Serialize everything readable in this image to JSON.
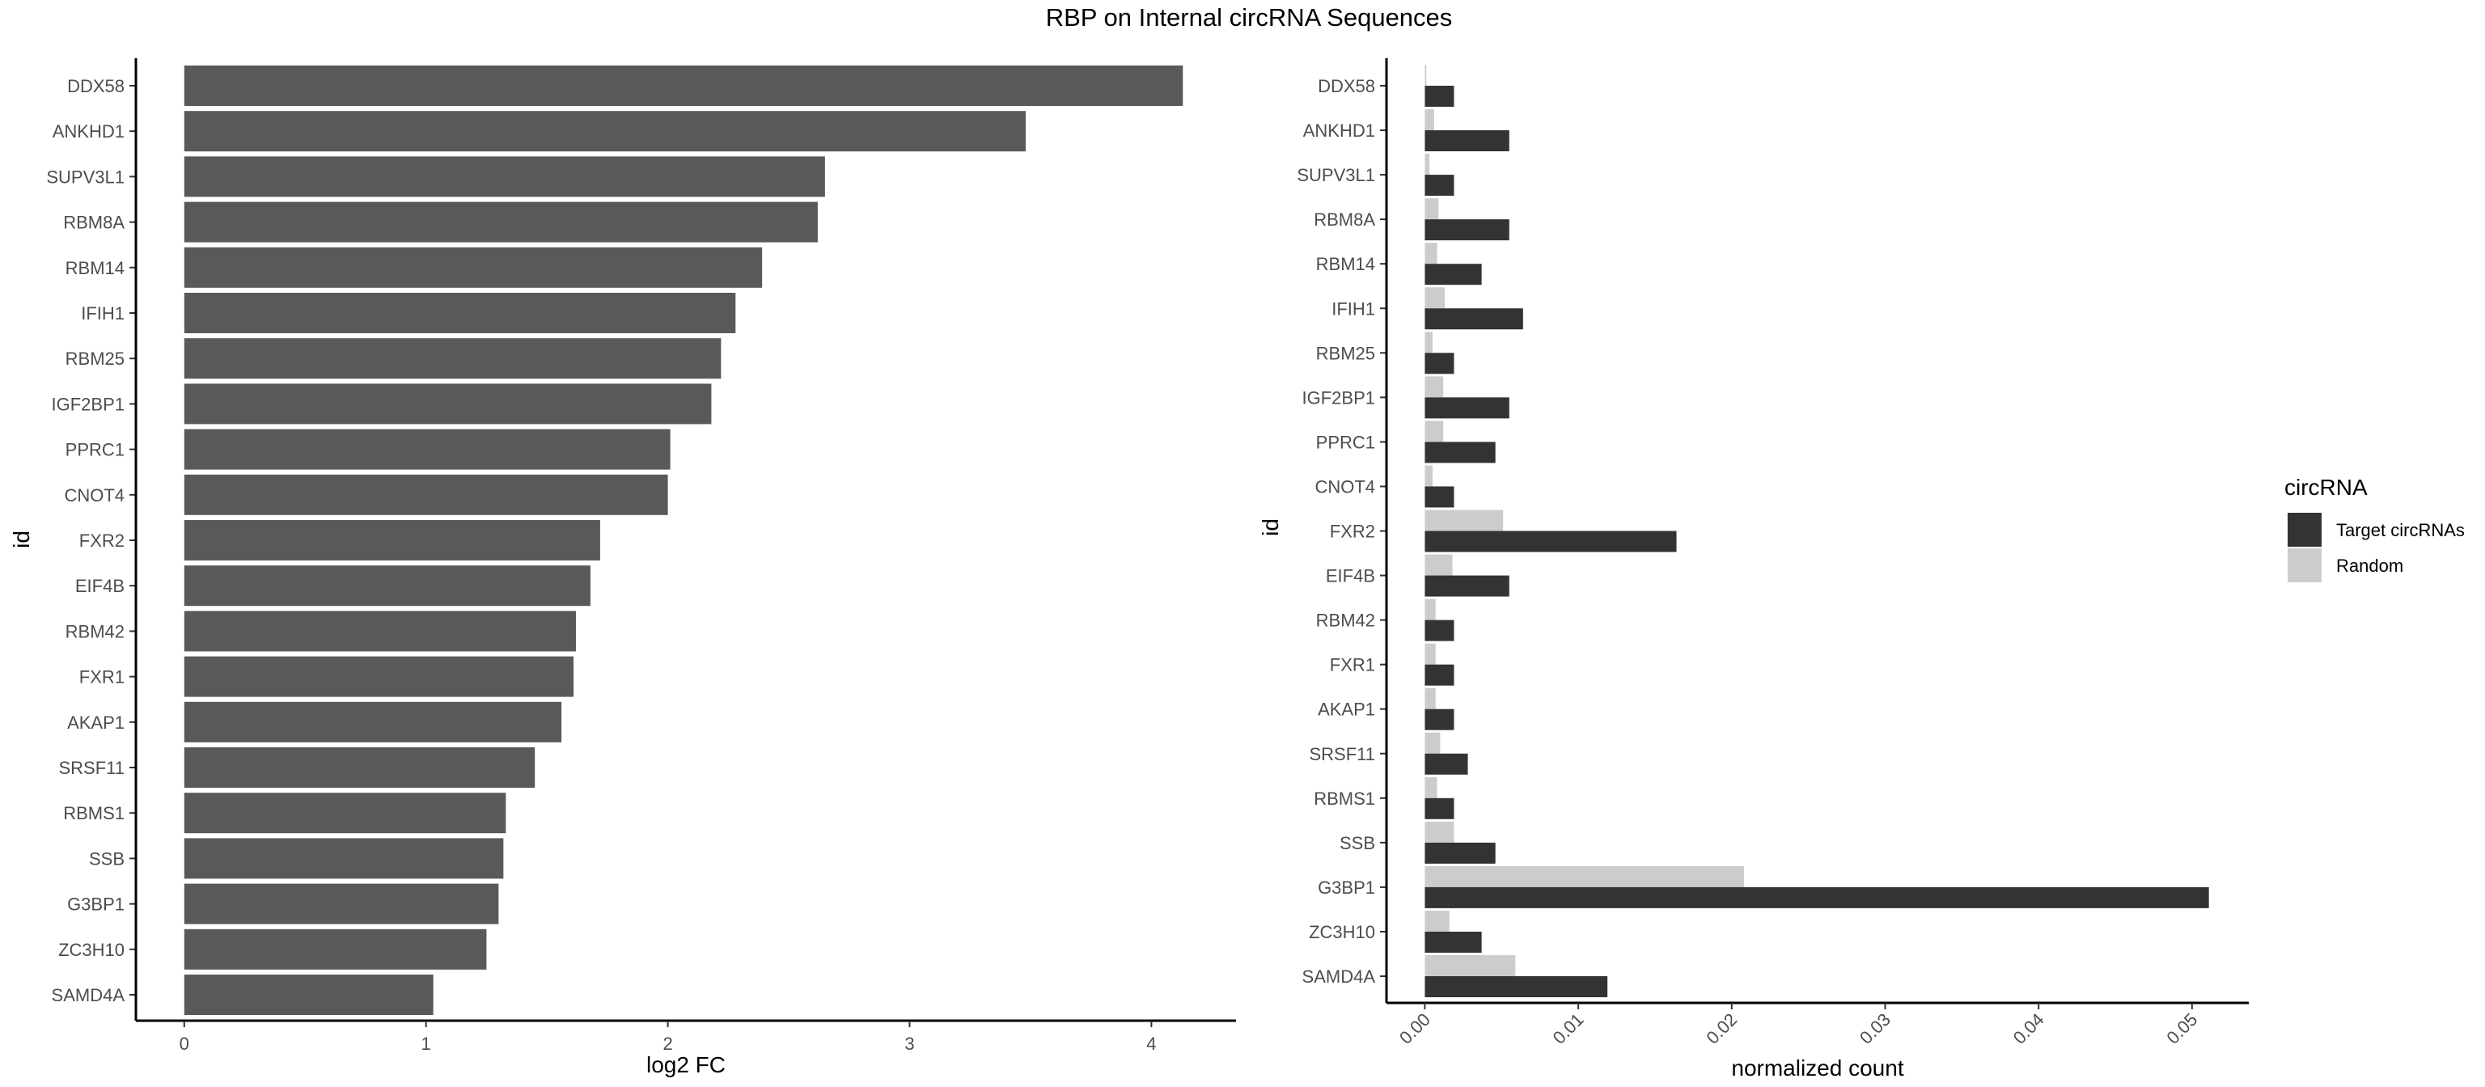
{
  "title": "RBP on Internal circRNA Sequences",
  "chart_data": [
    {
      "type": "bar",
      "orientation": "horizontal",
      "xlabel": "log2 FC",
      "ylabel": "id",
      "categories": [
        "DDX58",
        "ANKHD1",
        "SUPV3L1",
        "RBM8A",
        "RBM14",
        "IFIH1",
        "RBM25",
        "IGF2BP1",
        "PPRC1",
        "CNOT4",
        "FXR2",
        "EIF4B",
        "RBM42",
        "FXR1",
        "AKAP1",
        "SRSF11",
        "RBMS1",
        "SSB",
        "G3BP1",
        "ZC3H10",
        "SAMD4A"
      ],
      "values": [
        4.13,
        3.48,
        2.65,
        2.62,
        2.39,
        2.28,
        2.22,
        2.18,
        2.01,
        2.0,
        1.72,
        1.68,
        1.62,
        1.61,
        1.56,
        1.45,
        1.33,
        1.32,
        1.3,
        1.25,
        1.03
      ],
      "xlim": [
        -0.2,
        4.35
      ],
      "xticks": [
        "0",
        "1",
        "2",
        "3",
        "4"
      ],
      "bar_color": "#595959",
      "grid": false
    },
    {
      "type": "bar",
      "orientation": "horizontal",
      "xlabel": "normalized count",
      "ylabel": "id",
      "categories": [
        "DDX58",
        "ANKHD1",
        "SUPV3L1",
        "RBM8A",
        "RBM14",
        "IFIH1",
        "RBM25",
        "IGF2BP1",
        "PPRC1",
        "CNOT4",
        "FXR2",
        "EIF4B",
        "RBM42",
        "FXR1",
        "AKAP1",
        "SRSF11",
        "RBMS1",
        "SSB",
        "G3BP1",
        "ZC3H10",
        "SAMD4A"
      ],
      "series": [
        {
          "name": "Random",
          "color": "#cccccc",
          "values": [
            0.0001,
            0.0006,
            0.0003,
            0.0009,
            0.0008,
            0.0013,
            0.0005,
            0.0012,
            0.0012,
            0.0005,
            0.0051,
            0.0018,
            0.0007,
            0.0007,
            0.0007,
            0.001,
            0.0008,
            0.0019,
            0.0208,
            0.0016,
            0.0059
          ]
        },
        {
          "name": "Target circRNAs",
          "color": "#333333",
          "values": [
            0.0019,
            0.0055,
            0.0019,
            0.0055,
            0.0037,
            0.0064,
            0.0019,
            0.0055,
            0.0046,
            0.0019,
            0.0164,
            0.0055,
            0.0019,
            0.0019,
            0.0019,
            0.0028,
            0.0019,
            0.0046,
            0.0511,
            0.0037,
            0.0119
          ]
        }
      ],
      "xlim": [
        -0.0025,
        0.0537
      ],
      "xticks": [
        "0.00",
        "0.01",
        "0.02",
        "0.03",
        "0.04",
        "0.05"
      ],
      "grid": false,
      "legend": {
        "title": "circRNA",
        "position": "right",
        "entries": [
          {
            "label": "Target circRNAs",
            "color": "#333333"
          },
          {
            "label": "Random",
            "color": "#cccccc"
          }
        ]
      }
    }
  ]
}
